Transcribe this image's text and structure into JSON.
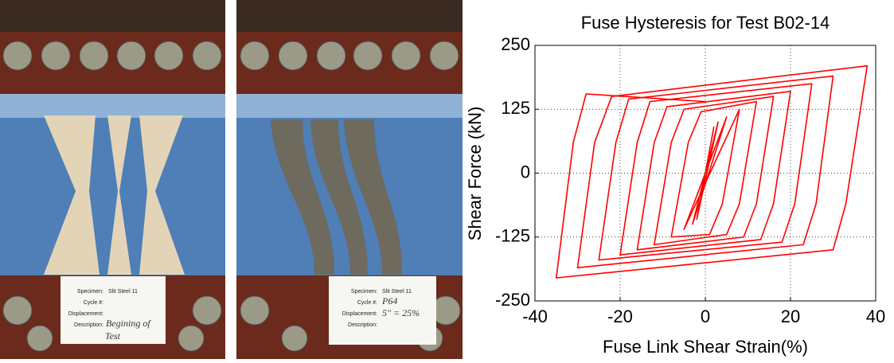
{
  "photos": [
    {
      "card": {
        "specimen_label": "Specimen:",
        "specimen": "Slit Steel 11",
        "cycle_label": "Cycle #:",
        "displacement_label": "Displacement:",
        "description_label": "Description:",
        "description": [
          "Begining of",
          "Test"
        ]
      }
    },
    {
      "card": {
        "specimen_label": "Specimen:",
        "specimen": "Slit Steel 11",
        "cycle_label": "Cycle #:",
        "cycle": "P64",
        "displacement_label": "Displacement:",
        "displacement": "5\" = 25%",
        "description_label": "Description:"
      }
    }
  ],
  "chart_data": {
    "type": "line",
    "title": "Fuse Hysteresis for Test B02-14",
    "x_label": "Fuse Link Shear Strain(%)",
    "y_label": "Shear Force (kN)",
    "x": [
      0,
      2,
      -2,
      3,
      -3,
      5,
      -5,
      8,
      4,
      1,
      -8,
      -4,
      -1,
      12,
      8,
      5,
      -12,
      -8,
      -5,
      16,
      12,
      9,
      -16,
      -12,
      -9,
      20,
      16,
      13,
      -20,
      -16,
      -13,
      25,
      21,
      18,
      -25,
      -21,
      -18,
      30,
      26,
      23,
      -30,
      -26,
      -22,
      38,
      33,
      30,
      -35,
      -31,
      -28,
      0
    ],
    "series": [
      {
        "color": "#ff0000",
        "values": [
          0,
          90,
          -90,
          100,
          -100,
          110,
          -110,
          125,
          -60,
          -120,
          -125,
          60,
          120,
          140,
          -60,
          -120,
          -140,
          60,
          125,
          150,
          -60,
          -125,
          -150,
          60,
          130,
          160,
          -60,
          -130,
          -160,
          60,
          140,
          175,
          -60,
          -135,
          -170,
          60,
          145,
          190,
          -60,
          -140,
          -185,
          60,
          150,
          210,
          -60,
          -150,
          -205,
          60,
          155,
          140
        ]
      }
    ],
    "xlim": [
      -40,
      40
    ],
    "xticks": [
      -40,
      -20,
      0,
      20,
      40
    ],
    "ylim": [
      -250,
      250
    ],
    "yticks": [
      -250,
      -125,
      0,
      125,
      250
    ],
    "grid": true
  }
}
